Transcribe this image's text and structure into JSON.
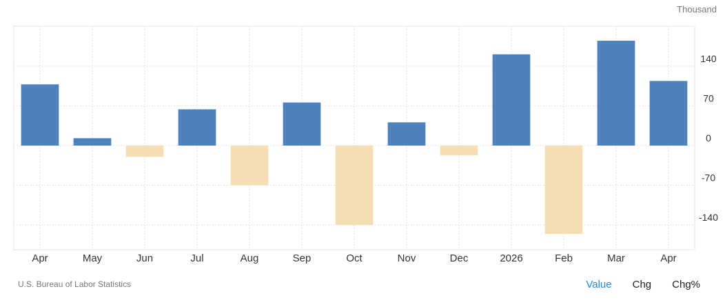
{
  "unit_label": "Thousand",
  "source": "U.S. Bureau of Labor Statistics",
  "toggles": [
    {
      "label": "Value",
      "active": true
    },
    {
      "label": "Chg",
      "active": false
    },
    {
      "label": "Chg%",
      "active": false
    }
  ],
  "colors": {
    "positive": "#4f81bd",
    "negative": "#f5deb3",
    "grid": "#e6e6e6",
    "active_toggle": "#2a87d0"
  },
  "chart_data": {
    "type": "bar",
    "title": "",
    "xlabel": "",
    "ylabel": "",
    "categories": [
      "Apr",
      "May",
      "Jun",
      "Jul",
      "Aug",
      "Sep",
      "Oct",
      "Nov",
      "Dec",
      "2026",
      "Feb",
      "Mar",
      "Apr"
    ],
    "values": [
      108,
      13,
      -20,
      64,
      -70,
      76,
      -140,
      41,
      -17,
      161,
      -156,
      185,
      114
    ],
    "y_ticks": [
      140,
      70,
      0,
      -70,
      -140
    ],
    "ylim": [
      -185,
      215
    ],
    "y_axis_position": "right",
    "grid": true,
    "legend": "none"
  }
}
